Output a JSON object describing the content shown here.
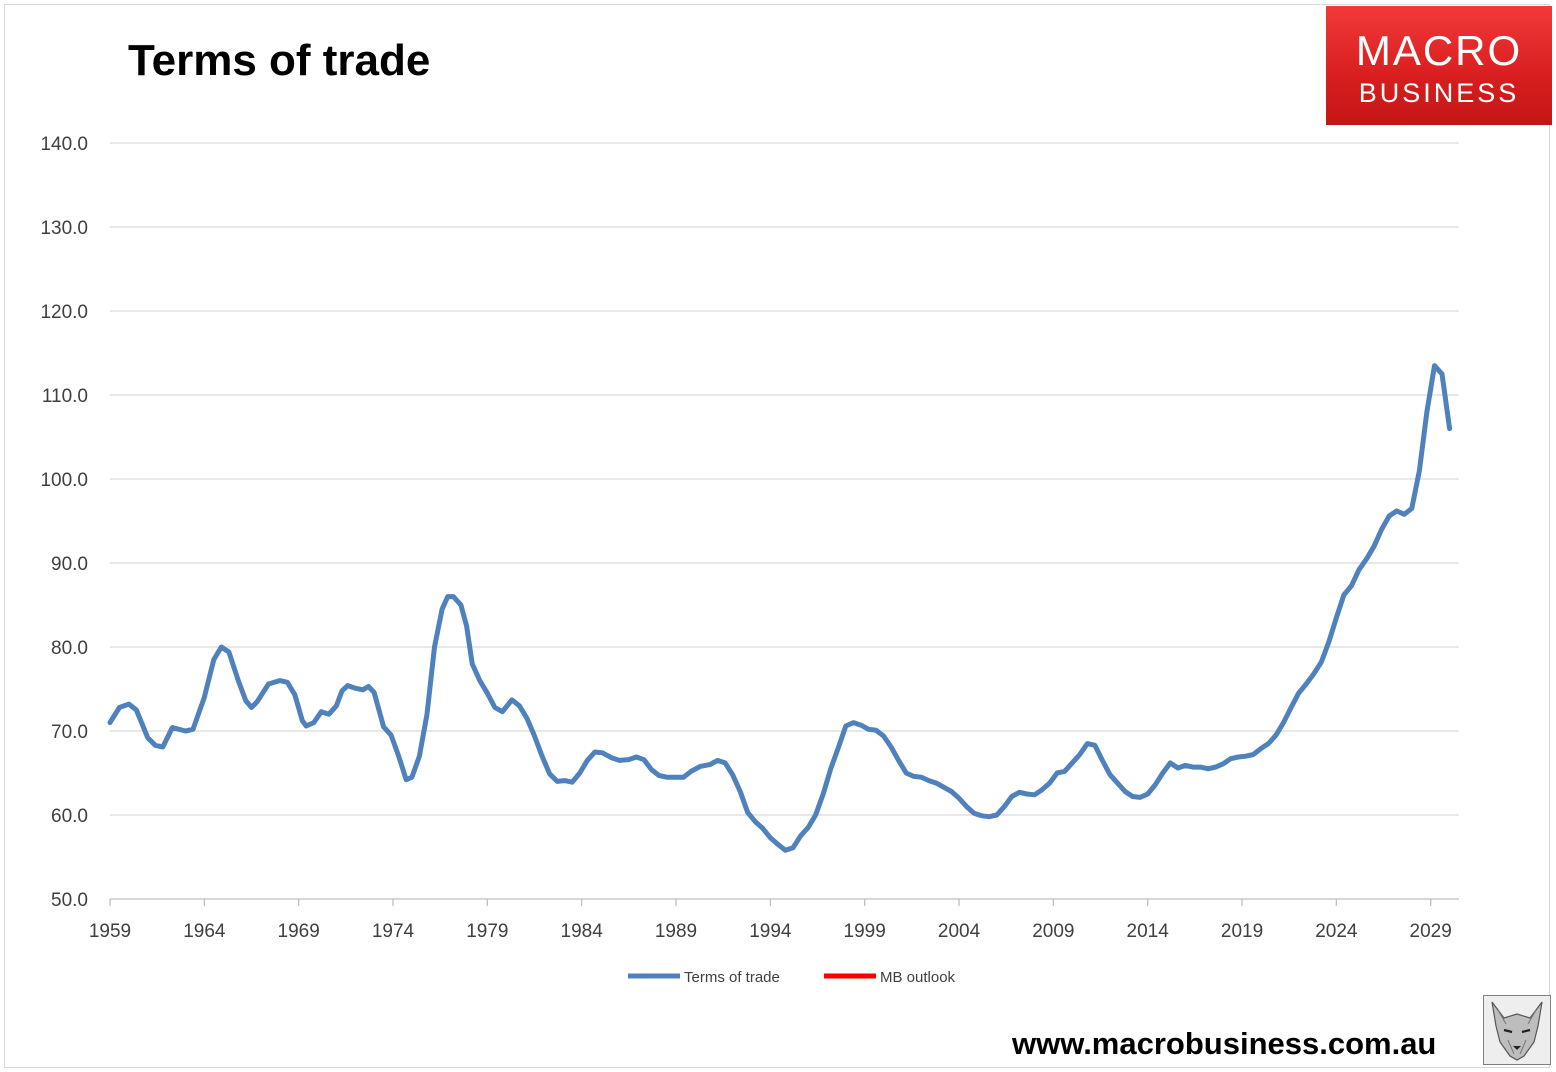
{
  "logo": {
    "line1": "MACRO",
    "line2": "BUSINESS"
  },
  "website": "www.macrobusiness.com.au",
  "colors": {
    "series1": "#4f81bd",
    "series2": "#ff0000",
    "logo_bg": "#e52b2b",
    "grid": "#d9d9d9",
    "axis_text": "#404040"
  },
  "chart_data": {
    "type": "line",
    "title": "Terms of trade",
    "xlabel": "",
    "ylabel": "",
    "xlim": [
      1959,
      2030.5
    ],
    "ylim": [
      50,
      140
    ],
    "x_ticks": [
      "1959",
      "1964",
      "1969",
      "1974",
      "1979",
      "1984",
      "1989",
      "1994",
      "1999",
      "2004",
      "2009",
      "2014",
      "2019",
      "2024",
      "2029"
    ],
    "y_ticks": [
      "140.0",
      "130.0",
      "120.0",
      "110.0",
      "100.0",
      "90.0",
      "80.0",
      "70.0",
      "60.0",
      "50.0"
    ],
    "grid": true,
    "legend_position": "bottom",
    "series": [
      {
        "name": "Terms of trade",
        "points": [
          [
            1959.0,
            71.0
          ],
          [
            1959.5,
            72.8
          ],
          [
            1960.0,
            73.2
          ],
          [
            1960.4,
            72.5
          ],
          [
            1961.0,
            69.2
          ],
          [
            1961.4,
            68.3
          ],
          [
            1961.8,
            68.1
          ],
          [
            1962.3,
            70.4
          ],
          [
            1963.0,
            70.0
          ],
          [
            1963.4,
            70.2
          ],
          [
            1964.0,
            74.0
          ],
          [
            1964.5,
            78.5
          ],
          [
            1964.9,
            80.0
          ],
          [
            1965.3,
            79.4
          ],
          [
            1965.8,
            76.0
          ],
          [
            1966.2,
            73.6
          ],
          [
            1966.5,
            72.8
          ],
          [
            1966.8,
            73.5
          ],
          [
            1967.4,
            75.6
          ],
          [
            1968.0,
            76.0
          ],
          [
            1968.4,
            75.8
          ],
          [
            1968.8,
            74.3
          ],
          [
            1969.2,
            71.2
          ],
          [
            1969.4,
            70.6
          ],
          [
            1969.8,
            71.0
          ],
          [
            1970.2,
            72.3
          ],
          [
            1970.6,
            72.0
          ],
          [
            1971.0,
            73.0
          ],
          [
            1971.3,
            74.8
          ],
          [
            1971.6,
            75.4
          ],
          [
            1972.0,
            75.1
          ],
          [
            1972.4,
            74.9
          ],
          [
            1972.7,
            75.3
          ],
          [
            1973.0,
            74.6
          ],
          [
            1973.5,
            70.5
          ],
          [
            1973.9,
            69.5
          ],
          [
            1974.3,
            67.0
          ],
          [
            1974.7,
            64.2
          ],
          [
            1975.0,
            64.5
          ],
          [
            1975.4,
            67.0
          ],
          [
            1975.8,
            72.0
          ],
          [
            1976.2,
            80.0
          ],
          [
            1976.6,
            84.5
          ],
          [
            1976.9,
            86.0
          ],
          [
            1977.2,
            86.0
          ],
          [
            1977.6,
            85.0
          ],
          [
            1977.9,
            82.5
          ],
          [
            1978.2,
            78.0
          ],
          [
            1978.6,
            76.0
          ],
          [
            1979.0,
            74.5
          ],
          [
            1979.4,
            72.8
          ],
          [
            1979.8,
            72.3
          ],
          [
            1980.3,
            73.7
          ],
          [
            1980.7,
            73.0
          ],
          [
            1981.1,
            71.5
          ],
          [
            1981.5,
            69.4
          ],
          [
            1981.9,
            67.0
          ],
          [
            1982.3,
            64.9
          ],
          [
            1982.7,
            64.0
          ],
          [
            1983.1,
            64.1
          ],
          [
            1983.5,
            63.9
          ],
          [
            1983.9,
            65.0
          ],
          [
            1984.3,
            66.5
          ],
          [
            1984.7,
            67.5
          ],
          [
            1985.1,
            67.4
          ],
          [
            1985.6,
            66.8
          ],
          [
            1986.0,
            66.5
          ],
          [
            1986.5,
            66.6
          ],
          [
            1986.9,
            66.9
          ],
          [
            1987.3,
            66.6
          ],
          [
            1987.7,
            65.4
          ],
          [
            1988.1,
            64.7
          ],
          [
            1988.5,
            64.5
          ],
          [
            1988.9,
            64.5
          ],
          [
            1989.4,
            64.5
          ],
          [
            1989.8,
            65.2
          ],
          [
            1990.3,
            65.8
          ],
          [
            1990.8,
            66.0
          ],
          [
            1991.2,
            66.5
          ],
          [
            1991.6,
            66.2
          ],
          [
            1992.0,
            64.8
          ],
          [
            1992.4,
            62.8
          ],
          [
            1992.8,
            60.3
          ],
          [
            1993.2,
            59.2
          ],
          [
            1993.6,
            58.4
          ],
          [
            1994.0,
            57.3
          ],
          [
            1994.4,
            56.5
          ],
          [
            1994.8,
            55.8
          ],
          [
            1995.2,
            56.1
          ],
          [
            1995.6,
            57.5
          ],
          [
            1996.0,
            58.5
          ],
          [
            1996.4,
            60.0
          ],
          [
            1996.8,
            62.5
          ],
          [
            1997.2,
            65.5
          ],
          [
            1997.6,
            68.0
          ],
          [
            1998.0,
            70.6
          ],
          [
            1998.4,
            71.0
          ],
          [
            1998.8,
            70.7
          ],
          [
            1999.2,
            70.2
          ],
          [
            1999.6,
            70.1
          ],
          [
            2000.0,
            69.4
          ],
          [
            2000.4,
            68.1
          ],
          [
            2000.8,
            66.5
          ],
          [
            2001.2,
            65.0
          ],
          [
            2001.6,
            64.6
          ],
          [
            2002.0,
            64.5
          ],
          [
            2002.4,
            64.1
          ],
          [
            2002.8,
            63.8
          ],
          [
            2003.2,
            63.3
          ],
          [
            2003.6,
            62.8
          ],
          [
            2004.0,
            62.0
          ],
          [
            2004.4,
            61.0
          ],
          [
            2004.8,
            60.2
          ],
          [
            2005.2,
            59.9
          ],
          [
            2005.6,
            59.8
          ],
          [
            2006.0,
            60.0
          ],
          [
            2006.4,
            61.0
          ],
          [
            2006.8,
            62.2
          ],
          [
            2007.2,
            62.7
          ],
          [
            2007.6,
            62.5
          ],
          [
            2008.0,
            62.4
          ],
          [
            2008.4,
            63.0
          ],
          [
            2008.8,
            63.8
          ],
          [
            2009.2,
            65.0
          ],
          [
            2009.6,
            65.2
          ],
          [
            2010.0,
            66.2
          ],
          [
            2010.4,
            67.2
          ],
          [
            2010.8,
            68.5
          ],
          [
            2011.2,
            68.3
          ],
          [
            2011.6,
            66.5
          ],
          [
            2012.0,
            64.8
          ],
          [
            2012.4,
            63.8
          ],
          [
            2012.8,
            62.8
          ],
          [
            2013.2,
            62.2
          ],
          [
            2013.6,
            62.1
          ],
          [
            2014.0,
            62.5
          ],
          [
            2014.4,
            63.6
          ],
          [
            2014.8,
            65.0
          ],
          [
            2015.2,
            66.2
          ],
          [
            2015.6,
            65.6
          ],
          [
            2016.0,
            65.9
          ],
          [
            2016.4,
            65.7
          ],
          [
            2016.8,
            65.7
          ],
          [
            2017.2,
            65.5
          ],
          [
            2017.6,
            65.7
          ],
          [
            2018.0,
            66.1
          ],
          [
            2018.4,
            66.7
          ],
          [
            2018.8,
            66.9
          ],
          [
            2019.2,
            67.0
          ],
          [
            2019.6,
            67.2
          ],
          [
            2020.0,
            67.9
          ],
          [
            2020.4,
            68.5
          ],
          [
            2020.8,
            69.5
          ],
          [
            2021.2,
            71.0
          ],
          [
            2021.6,
            72.8
          ],
          [
            2022.0,
            74.5
          ],
          [
            2022.4,
            75.6
          ],
          [
            2022.8,
            76.8
          ],
          [
            2023.2,
            78.2
          ],
          [
            2023.6,
            80.6
          ],
          [
            2024.0,
            83.5
          ],
          [
            2024.4,
            86.2
          ],
          [
            2024.8,
            87.3
          ],
          [
            2025.2,
            89.2
          ],
          [
            2025.6,
            90.5
          ],
          [
            2026.0,
            92.0
          ],
          [
            2026.4,
            94.0
          ],
          [
            2026.8,
            95.6
          ],
          [
            2027.2,
            96.2
          ],
          [
            2027.6,
            95.8
          ],
          [
            2028.0,
            96.5
          ],
          [
            2028.4,
            101.0
          ],
          [
            2028.8,
            108.0
          ],
          [
            2029.2,
            113.5
          ],
          [
            2029.6,
            112.5
          ],
          [
            2030.0,
            106.0
          ]
        ]
      },
      {
        "name": "MB outlook",
        "points": []
      }
    ]
  }
}
